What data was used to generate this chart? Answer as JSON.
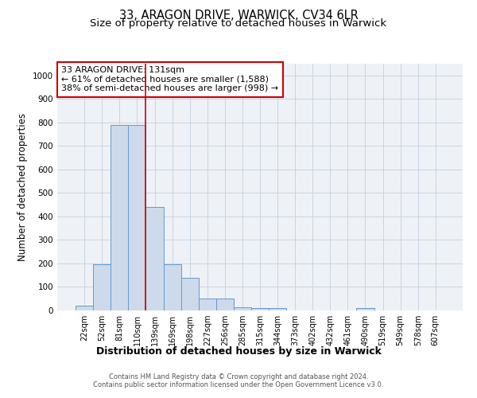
{
  "title1": "33, ARAGON DRIVE, WARWICK, CV34 6LR",
  "title2": "Size of property relative to detached houses in Warwick",
  "xlabel": "Distribution of detached houses by size in Warwick",
  "ylabel": "Number of detached properties",
  "categories": [
    "22sqm",
    "52sqm",
    "81sqm",
    "110sqm",
    "139sqm",
    "169sqm",
    "198sqm",
    "227sqm",
    "256sqm",
    "285sqm",
    "315sqm",
    "344sqm",
    "373sqm",
    "402sqm",
    "432sqm",
    "461sqm",
    "490sqm",
    "519sqm",
    "549sqm",
    "578sqm",
    "607sqm"
  ],
  "values": [
    20,
    195,
    790,
    790,
    440,
    195,
    140,
    50,
    50,
    15,
    10,
    10,
    0,
    0,
    0,
    0,
    10,
    0,
    0,
    0,
    0
  ],
  "bar_color": "#ccdaeb",
  "bar_edge_color": "#6699cc",
  "grid_color": "#c8d4e0",
  "vline_x": 3.5,
  "vline_color": "#cc0000",
  "annotation_text": "33 ARAGON DRIVE: 131sqm\n← 61% of detached houses are smaller (1,588)\n38% of semi-detached houses are larger (998) →",
  "annotation_box_facecolor": "white",
  "annotation_edge_color": "#cc0000",
  "footnote1": "Contains HM Land Registry data © Crown copyright and database right 2024.",
  "footnote2": "Contains public sector information licensed under the Open Government Licence v3.0.",
  "ylim": [
    0,
    1050
  ],
  "yticks": [
    0,
    100,
    200,
    300,
    400,
    500,
    600,
    700,
    800,
    900,
    1000
  ],
  "title1_fontsize": 10.5,
  "title2_fontsize": 9.5,
  "tick_fontsize": 7,
  "ylabel_fontsize": 8.5,
  "xlabel_fontsize": 9,
  "footnote_fontsize": 6,
  "annotation_fontsize": 8
}
